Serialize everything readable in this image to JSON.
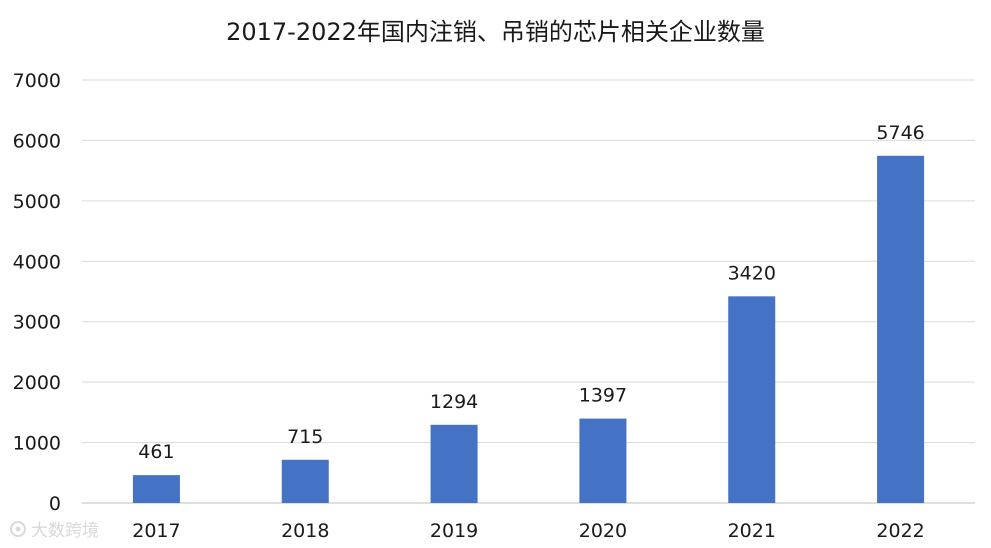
{
  "chart_data": {
    "type": "bar",
    "title": "2017-2022年国内注销、吊销的芯片相关企业数量",
    "categories": [
      "2017",
      "2018",
      "2019",
      "2020",
      "2021",
      "2022"
    ],
    "values": [
      461,
      715,
      1294,
      1397,
      3420,
      5746
    ],
    "ylim": [
      0,
      7000
    ],
    "yticks": [
      0,
      1000,
      2000,
      3000,
      4000,
      5000,
      6000,
      7000
    ],
    "xlabel": "",
    "ylabel": "",
    "grid": true,
    "bar_color": "#4472c4",
    "grid_color": "#d9d9d9"
  },
  "watermark": {
    "text": "大数跨境"
  }
}
